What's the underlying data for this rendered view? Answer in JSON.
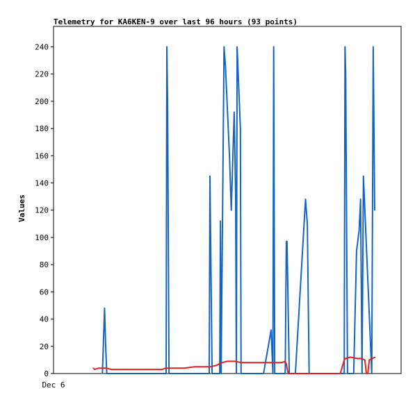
{
  "chart_data": {
    "type": "line",
    "title": "Telemetry for KA6KEN-9 over last 96 hours (93 points)",
    "xlabel": "",
    "ylabel": "Values",
    "x_tick_labels": [
      "Dec 6"
    ],
    "y_ticks": [
      0,
      20,
      40,
      60,
      80,
      100,
      120,
      140,
      160,
      180,
      200,
      220,
      240
    ],
    "ylim": [
      0,
      255
    ],
    "xlim": [
      0,
      96
    ],
    "grid": false,
    "legend": "none",
    "series": [
      {
        "color": "#1565c0",
        "x": [
          13.5,
          14.1,
          14.4,
          14.7,
          31.1,
          31.3,
          31.5,
          31.9,
          43.0,
          43.2,
          43.4,
          43.8,
          45.9,
          46.1,
          46.3,
          47.1,
          47.5,
          48.6,
          49.1,
          49.9,
          50.3,
          50.5,
          50.7,
          51.6,
          51.8,
          52.0,
          58.0,
          60.1,
          60.6,
          60.8,
          61.1,
          64.0,
          64.3,
          64.5,
          65.1,
          66.8,
          69.6,
          70.1,
          70.6,
          80.3,
          80.5,
          80.7,
          81.2,
          82.9,
          83.7,
          84.4,
          84.8,
          85.2,
          85.6,
          87.9,
          88.3,
          88.7
        ],
        "y": [
          0,
          48,
          20,
          0,
          0,
          240,
          200,
          0,
          0,
          145,
          100,
          0,
          0,
          112,
          0,
          240,
          225,
          160,
          120,
          192,
          130,
          0,
          240,
          180,
          0,
          0,
          0,
          32,
          0,
          240,
          0,
          0,
          97,
          97,
          0,
          0,
          128,
          110,
          0,
          0,
          240,
          220,
          0,
          0,
          90,
          105,
          128,
          0,
          145,
          0,
          240,
          120
        ]
      },
      {
        "color": "#e02020",
        "x": [
          11.0,
          11.4,
          12.5,
          13.8,
          14.5,
          16.0,
          20.0,
          26.0,
          30.0,
          31.0,
          33.0,
          36.0,
          39.0,
          42.0,
          43.5,
          45.0,
          46.5,
          48.0,
          50.0,
          52.0,
          55.0,
          58.0,
          61.0,
          63.0,
          64.0,
          64.3,
          64.8,
          73.0,
          78.8,
          79.2,
          80.3,
          80.6,
          82.0,
          84.0,
          85.0,
          86.0,
          86.4,
          86.8,
          87.2,
          88.8
        ],
        "y": [
          4,
          3,
          4,
          4,
          4,
          3,
          3,
          3,
          3,
          4,
          4,
          4,
          5,
          5,
          5,
          6,
          8,
          9,
          9,
          8,
          8,
          8,
          8,
          8,
          9,
          7,
          0,
          0,
          0,
          0,
          10,
          11,
          12,
          11,
          11,
          10,
          0,
          0,
          10,
          12
        ]
      }
    ]
  }
}
